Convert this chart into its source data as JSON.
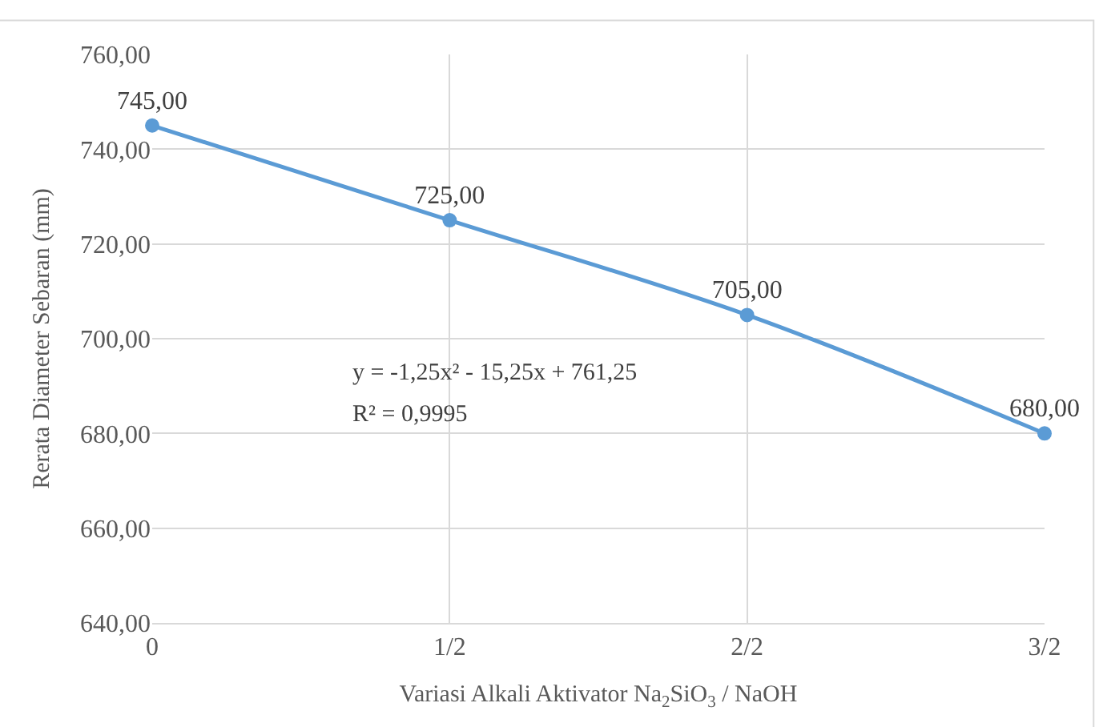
{
  "chart_data": {
    "type": "line",
    "xlabel": "Variasi Alkali Aktivator Na$_{2}$SiO$_{3}$ / NaOH",
    "ylabel": "Rerata Diameter Sebaran (mm)",
    "categories": [
      "0",
      "1/2",
      "2/2",
      "3/2"
    ],
    "series": [
      {
        "color": "#5b9bd5",
        "values": [
          745,
          725,
          705,
          680
        ],
        "value_labels": [
          "745,00",
          "725,00",
          "705,00",
          "680,00"
        ]
      }
    ],
    "ylim": [
      640,
      760
    ],
    "yticks": [
      {
        "value": 640,
        "label": "640,00"
      },
      {
        "value": 660,
        "label": "660,00"
      },
      {
        "value": 680,
        "label": "680,00"
      },
      {
        "value": 700,
        "label": "700,00"
      },
      {
        "value": 720,
        "label": "720,00"
      },
      {
        "value": 740,
        "label": "740,00"
      },
      {
        "value": 760,
        "label": "760,00"
      }
    ],
    "grid": true,
    "marker": "circle",
    "line_style": "solid",
    "legend": false,
    "annotations": [
      "y = -1,25x² - 15,25x + 761,25",
      "R² = 0,9995"
    ]
  }
}
